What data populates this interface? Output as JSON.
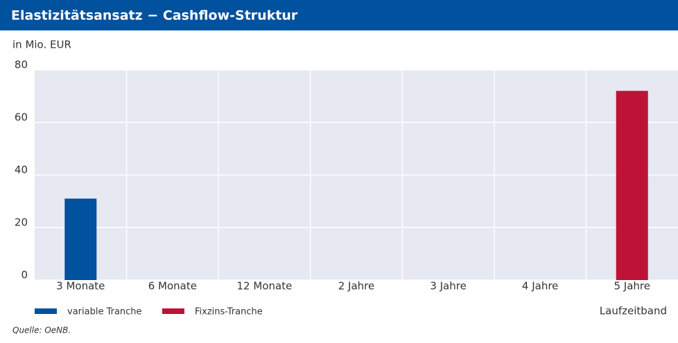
{
  "chart_data": {
    "type": "bar",
    "title": "Elastizitätsansatz − Cashflow-Struktur",
    "y_axis_label": "in Mio. EUR",
    "x_axis_label": "Laufzeitband",
    "source": "Quelle: OeNB.",
    "categories": [
      "3 Monate",
      "6 Monate",
      "12 Monate",
      "2 Jahre",
      "3 Jahre",
      "4 Jahre",
      "5 Jahre"
    ],
    "series": [
      {
        "name": "variable Tranche",
        "color": "#00519e",
        "values": [
          31,
          null,
          null,
          null,
          null,
          null,
          null
        ]
      },
      {
        "name": "Fixzins-Tranche",
        "color": "#be1237",
        "values": [
          null,
          null,
          null,
          null,
          null,
          null,
          72
        ]
      }
    ],
    "ylim": [
      0,
      80
    ],
    "yticks": [
      0,
      20,
      40,
      60,
      80
    ],
    "grid": true
  }
}
